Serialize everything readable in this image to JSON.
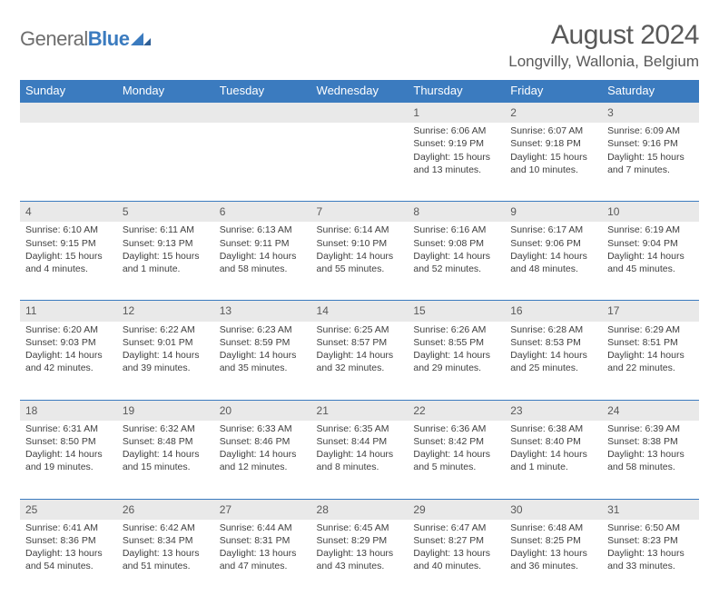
{
  "logo": {
    "text1": "General",
    "text2": "Blue"
  },
  "title": "August 2024",
  "location": "Longvilly, Wallonia, Belgium",
  "colors": {
    "header_bg": "#3b7bbf",
    "header_text": "#ffffff",
    "daynum_bg": "#e9e9e9",
    "page_bg": "#ffffff",
    "text": "#404040",
    "logo_gray": "#6e6e6e",
    "logo_blue": "#3b7bbf"
  },
  "typography": {
    "title_fontsize": 30,
    "location_fontsize": 17,
    "dayheader_fontsize": 13,
    "cell_fontsize": 10.5
  },
  "day_headers": [
    "Sunday",
    "Monday",
    "Tuesday",
    "Wednesday",
    "Thursday",
    "Friday",
    "Saturday"
  ],
  "weeks": [
    [
      null,
      null,
      null,
      null,
      {
        "n": "1",
        "sunrise": "Sunrise: 6:06 AM",
        "sunset": "Sunset: 9:19 PM",
        "daylight": "Daylight: 15 hours and 13 minutes."
      },
      {
        "n": "2",
        "sunrise": "Sunrise: 6:07 AM",
        "sunset": "Sunset: 9:18 PM",
        "daylight": "Daylight: 15 hours and 10 minutes."
      },
      {
        "n": "3",
        "sunrise": "Sunrise: 6:09 AM",
        "sunset": "Sunset: 9:16 PM",
        "daylight": "Daylight: 15 hours and 7 minutes."
      }
    ],
    [
      {
        "n": "4",
        "sunrise": "Sunrise: 6:10 AM",
        "sunset": "Sunset: 9:15 PM",
        "daylight": "Daylight: 15 hours and 4 minutes."
      },
      {
        "n": "5",
        "sunrise": "Sunrise: 6:11 AM",
        "sunset": "Sunset: 9:13 PM",
        "daylight": "Daylight: 15 hours and 1 minute."
      },
      {
        "n": "6",
        "sunrise": "Sunrise: 6:13 AM",
        "sunset": "Sunset: 9:11 PM",
        "daylight": "Daylight: 14 hours and 58 minutes."
      },
      {
        "n": "7",
        "sunrise": "Sunrise: 6:14 AM",
        "sunset": "Sunset: 9:10 PM",
        "daylight": "Daylight: 14 hours and 55 minutes."
      },
      {
        "n": "8",
        "sunrise": "Sunrise: 6:16 AM",
        "sunset": "Sunset: 9:08 PM",
        "daylight": "Daylight: 14 hours and 52 minutes."
      },
      {
        "n": "9",
        "sunrise": "Sunrise: 6:17 AM",
        "sunset": "Sunset: 9:06 PM",
        "daylight": "Daylight: 14 hours and 48 minutes."
      },
      {
        "n": "10",
        "sunrise": "Sunrise: 6:19 AM",
        "sunset": "Sunset: 9:04 PM",
        "daylight": "Daylight: 14 hours and 45 minutes."
      }
    ],
    [
      {
        "n": "11",
        "sunrise": "Sunrise: 6:20 AM",
        "sunset": "Sunset: 9:03 PM",
        "daylight": "Daylight: 14 hours and 42 minutes."
      },
      {
        "n": "12",
        "sunrise": "Sunrise: 6:22 AM",
        "sunset": "Sunset: 9:01 PM",
        "daylight": "Daylight: 14 hours and 39 minutes."
      },
      {
        "n": "13",
        "sunrise": "Sunrise: 6:23 AM",
        "sunset": "Sunset: 8:59 PM",
        "daylight": "Daylight: 14 hours and 35 minutes."
      },
      {
        "n": "14",
        "sunrise": "Sunrise: 6:25 AM",
        "sunset": "Sunset: 8:57 PM",
        "daylight": "Daylight: 14 hours and 32 minutes."
      },
      {
        "n": "15",
        "sunrise": "Sunrise: 6:26 AM",
        "sunset": "Sunset: 8:55 PM",
        "daylight": "Daylight: 14 hours and 29 minutes."
      },
      {
        "n": "16",
        "sunrise": "Sunrise: 6:28 AM",
        "sunset": "Sunset: 8:53 PM",
        "daylight": "Daylight: 14 hours and 25 minutes."
      },
      {
        "n": "17",
        "sunrise": "Sunrise: 6:29 AM",
        "sunset": "Sunset: 8:51 PM",
        "daylight": "Daylight: 14 hours and 22 minutes."
      }
    ],
    [
      {
        "n": "18",
        "sunrise": "Sunrise: 6:31 AM",
        "sunset": "Sunset: 8:50 PM",
        "daylight": "Daylight: 14 hours and 19 minutes."
      },
      {
        "n": "19",
        "sunrise": "Sunrise: 6:32 AM",
        "sunset": "Sunset: 8:48 PM",
        "daylight": "Daylight: 14 hours and 15 minutes."
      },
      {
        "n": "20",
        "sunrise": "Sunrise: 6:33 AM",
        "sunset": "Sunset: 8:46 PM",
        "daylight": "Daylight: 14 hours and 12 minutes."
      },
      {
        "n": "21",
        "sunrise": "Sunrise: 6:35 AM",
        "sunset": "Sunset: 8:44 PM",
        "daylight": "Daylight: 14 hours and 8 minutes."
      },
      {
        "n": "22",
        "sunrise": "Sunrise: 6:36 AM",
        "sunset": "Sunset: 8:42 PM",
        "daylight": "Daylight: 14 hours and 5 minutes."
      },
      {
        "n": "23",
        "sunrise": "Sunrise: 6:38 AM",
        "sunset": "Sunset: 8:40 PM",
        "daylight": "Daylight: 14 hours and 1 minute."
      },
      {
        "n": "24",
        "sunrise": "Sunrise: 6:39 AM",
        "sunset": "Sunset: 8:38 PM",
        "daylight": "Daylight: 13 hours and 58 minutes."
      }
    ],
    [
      {
        "n": "25",
        "sunrise": "Sunrise: 6:41 AM",
        "sunset": "Sunset: 8:36 PM",
        "daylight": "Daylight: 13 hours and 54 minutes."
      },
      {
        "n": "26",
        "sunrise": "Sunrise: 6:42 AM",
        "sunset": "Sunset: 8:34 PM",
        "daylight": "Daylight: 13 hours and 51 minutes."
      },
      {
        "n": "27",
        "sunrise": "Sunrise: 6:44 AM",
        "sunset": "Sunset: 8:31 PM",
        "daylight": "Daylight: 13 hours and 47 minutes."
      },
      {
        "n": "28",
        "sunrise": "Sunrise: 6:45 AM",
        "sunset": "Sunset: 8:29 PM",
        "daylight": "Daylight: 13 hours and 43 minutes."
      },
      {
        "n": "29",
        "sunrise": "Sunrise: 6:47 AM",
        "sunset": "Sunset: 8:27 PM",
        "daylight": "Daylight: 13 hours and 40 minutes."
      },
      {
        "n": "30",
        "sunrise": "Sunrise: 6:48 AM",
        "sunset": "Sunset: 8:25 PM",
        "daylight": "Daylight: 13 hours and 36 minutes."
      },
      {
        "n": "31",
        "sunrise": "Sunrise: 6:50 AM",
        "sunset": "Sunset: 8:23 PM",
        "daylight": "Daylight: 13 hours and 33 minutes."
      }
    ]
  ]
}
